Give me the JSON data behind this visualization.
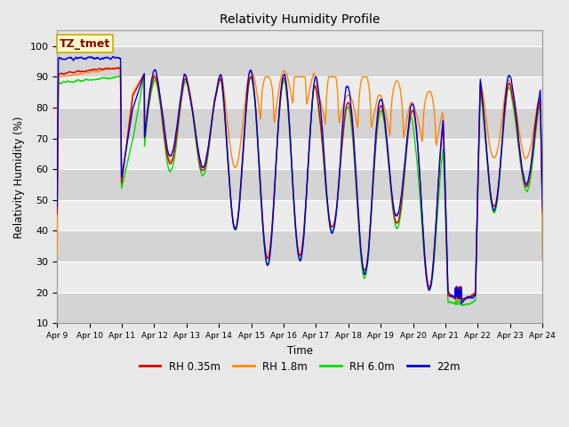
{
  "title": "Relativity Humidity Profile",
  "xlabel": "Time",
  "ylabel": "Relativity Humidity (%)",
  "ylim": [
    10,
    105
  ],
  "yticks": [
    10,
    20,
    30,
    40,
    50,
    60,
    70,
    80,
    90,
    100
  ],
  "x_tick_labels": [
    "Apr 9",
    "Apr 10",
    "Apr 11",
    "Apr 12",
    "Apr 13",
    "Apr 14",
    "Apr 15",
    "Apr 16",
    "Apr 17",
    "Apr 18",
    "Apr 19",
    "Apr 20",
    "Apr 21",
    "Apr 22",
    "Apr 23",
    "Apr 24"
  ],
  "colors": {
    "rh035": "#dd0000",
    "rh18": "#ff8800",
    "rh60": "#00dd00",
    "rh22m": "#0000dd"
  },
  "legend_labels": [
    "RH 0.35m",
    "RH 1.8m",
    "RH 6.0m",
    "22m"
  ],
  "annotation_text": "TZ_tmet",
  "annotation_color": "#8B0000",
  "annotation_bg": "#ffffcc",
  "annotation_border": "#ccaa00",
  "linewidth": 1.0,
  "fig_width": 6.4,
  "fig_height": 4.8,
  "dpi": 100
}
